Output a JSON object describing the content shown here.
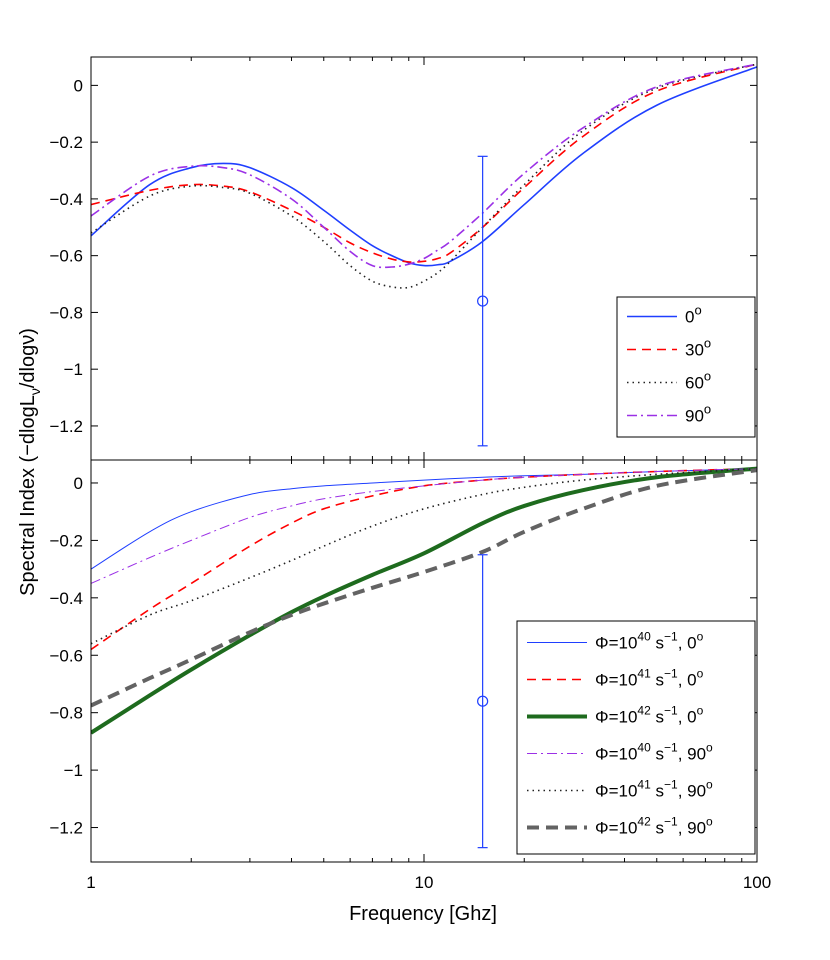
{
  "figure": {
    "xlabel": "Frequency [Ghz]",
    "ylabel": "Spectral Index (−dlogLν/dlogν)",
    "ylabel_parts": {
      "pre": "Spectral Index (−dlogL",
      "sub": "ν",
      "post": "/dlogν)"
    },
    "x_ticks": [
      1,
      10,
      100
    ],
    "x_tick_labels": [
      "1",
      "10",
      "100"
    ],
    "xscale": "log",
    "xlim": [
      1,
      100
    ]
  },
  "chart_data": [
    {
      "type": "line",
      "panel": "top",
      "xlabel": "Frequency [Ghz]",
      "ylabel": "Spectral Index (−dlogLν/dlogν)",
      "xscale": "log",
      "xlim": [
        1,
        100
      ],
      "ylim": [
        -1.32,
        0.1
      ],
      "y_ticks": [
        0,
        -0.2,
        -0.4,
        -0.6,
        -0.8,
        -1,
        -1.2
      ],
      "y_tick_labels": [
        "0",
        "−0.2",
        "−0.4",
        "−0.6",
        "−0.8",
        "−1",
        "−1.2"
      ],
      "legend_position": "bottom-right",
      "x": [
        1,
        1.5,
        2,
        2.5,
        3,
        4,
        5,
        6,
        7,
        8,
        9,
        10,
        11,
        12,
        15,
        20,
        30,
        50,
        100
      ],
      "series": [
        {
          "name": "0",
          "label_sup": "o",
          "legend_text": "0",
          "color": "#1f3fff",
          "dash": "",
          "width": 1.6,
          "values": [
            -0.53,
            -0.35,
            -0.29,
            -0.275,
            -0.29,
            -0.36,
            -0.44,
            -0.51,
            -0.565,
            -0.6,
            -0.625,
            -0.635,
            -0.632,
            -0.62,
            -0.55,
            -0.42,
            -0.24,
            -0.07,
            0.065
          ]
        },
        {
          "name": "30",
          "label_sup": "o",
          "legend_text": "30",
          "color": "#ff0000",
          "dash": "9,6",
          "width": 1.6,
          "values": [
            -0.42,
            -0.37,
            -0.35,
            -0.355,
            -0.375,
            -0.44,
            -0.5,
            -0.555,
            -0.59,
            -0.612,
            -0.622,
            -0.62,
            -0.61,
            -0.59,
            -0.5,
            -0.36,
            -0.18,
            -0.02,
            0.075
          ]
        },
        {
          "name": "60",
          "label_sup": "o",
          "legend_text": "60",
          "color": "#222222",
          "dash": "1.5,4",
          "width": 1.6,
          "values": [
            -0.52,
            -0.39,
            -0.355,
            -0.36,
            -0.38,
            -0.46,
            -0.55,
            -0.635,
            -0.69,
            -0.71,
            -0.712,
            -0.69,
            -0.66,
            -0.62,
            -0.5,
            -0.35,
            -0.16,
            -0.01,
            0.075
          ]
        },
        {
          "name": "90",
          "label_sup": "o",
          "legend_text": "90",
          "color": "#9b30e6",
          "dash": "10,4,2,4",
          "width": 1.6,
          "values": [
            -0.46,
            -0.32,
            -0.285,
            -0.29,
            -0.315,
            -0.4,
            -0.5,
            -0.585,
            -0.635,
            -0.64,
            -0.63,
            -0.61,
            -0.58,
            -0.55,
            -0.45,
            -0.31,
            -0.15,
            -0.005,
            0.075
          ]
        }
      ],
      "errorbar": {
        "x": 15,
        "y": -0.76,
        "low": -1.27,
        "high": -0.25,
        "color": "#1f3fff"
      }
    },
    {
      "type": "line",
      "panel": "bottom",
      "xlabel": "Frequency [Ghz]",
      "ylabel": "Spectral Index (−dlogLν/dlogν)",
      "xscale": "log",
      "xlim": [
        1,
        100
      ],
      "ylim": [
        -1.32,
        0.08
      ],
      "y_ticks": [
        0,
        -0.2,
        -0.4,
        -0.6,
        -0.8,
        -1,
        -1.2
      ],
      "y_tick_labels": [
        "0",
        "−0.2",
        "−0.4",
        "−0.6",
        "−0.8",
        "−1",
        "−1.2"
      ],
      "legend_position": "bottom-right",
      "x": [
        1,
        1.5,
        2,
        3,
        4,
        5,
        7,
        10,
        15,
        20,
        30,
        50,
        100
      ],
      "series": [
        {
          "name": "Φ=10^40 s^-1, 0",
          "legend_pre": "Φ=10",
          "legend_exp": "40",
          "legend_mid": " s",
          "legend_exp2": "−1",
          "legend_post": ", 0",
          "legend_deg": "o",
          "color": "#1f3fff",
          "dash": "",
          "width": 1.0,
          "values": [
            -0.3,
            -0.17,
            -0.1,
            -0.04,
            -0.02,
            -0.01,
            0.0,
            0.01,
            0.02,
            0.025,
            0.03,
            0.04,
            0.05
          ]
        },
        {
          "name": "Φ=10^41 s^-1, 0",
          "legend_pre": "Φ=10",
          "legend_exp": "41",
          "legend_mid": " s",
          "legend_exp2": "−1",
          "legend_post": ", 0",
          "legend_deg": "o",
          "color": "#ff0000",
          "dash": "9,6",
          "width": 1.6,
          "values": [
            -0.58,
            -0.44,
            -0.35,
            -0.22,
            -0.14,
            -0.09,
            -0.045,
            -0.01,
            0.01,
            0.02,
            0.03,
            0.04,
            0.05
          ]
        },
        {
          "name": "Φ=10^42 s^-1, 0",
          "legend_pre": "Φ=10",
          "legend_exp": "42",
          "legend_mid": " s",
          "legend_exp2": "−1",
          "legend_post": ", 0",
          "legend_deg": "o",
          "color": "#1e6b1e",
          "dash": "",
          "width": 4,
          "values": [
            -0.87,
            -0.74,
            -0.65,
            -0.53,
            -0.45,
            -0.395,
            -0.32,
            -0.245,
            -0.14,
            -0.08,
            -0.025,
            0.02,
            0.05
          ]
        },
        {
          "name": "Φ=10^40 s^-1, 90",
          "legend_pre": "Φ=10",
          "legend_exp": "40",
          "legend_mid": " s",
          "legend_exp2": "−1",
          "legend_post": ", 90",
          "legend_deg": "o",
          "color": "#9b30e6",
          "dash": "10,4,2,4",
          "width": 1.0,
          "values": [
            -0.35,
            -0.26,
            -0.2,
            -0.12,
            -0.08,
            -0.055,
            -0.03,
            -0.01,
            0.01,
            0.02,
            0.03,
            0.04,
            0.05
          ]
        },
        {
          "name": "Φ=10^41 s^-1, 90",
          "legend_pre": "Φ=10",
          "legend_exp": "41",
          "legend_mid": " s",
          "legend_exp2": "−1",
          "legend_post": ", 90",
          "legend_deg": "o",
          "color": "#222222",
          "dash": "1.5,4",
          "width": 1.6,
          "values": [
            -0.56,
            -0.46,
            -0.41,
            -0.33,
            -0.27,
            -0.22,
            -0.15,
            -0.09,
            -0.04,
            -0.015,
            0.01,
            0.03,
            0.05
          ]
        },
        {
          "name": "Φ=10^42 s^-1, 90",
          "legend_pre": "Φ=10",
          "legend_exp": "42",
          "legend_mid": " s",
          "legend_exp2": "−1",
          "legend_post": ", 90",
          "legend_deg": "o",
          "color": "#636363",
          "dash": "12,7",
          "width": 4,
          "values": [
            -0.775,
            -0.68,
            -0.615,
            -0.52,
            -0.46,
            -0.42,
            -0.365,
            -0.31,
            -0.24,
            -0.17,
            -0.09,
            -0.01,
            0.045
          ]
        }
      ],
      "errorbar": {
        "x": 15,
        "y": -0.76,
        "low": -1.27,
        "high": -0.25,
        "color": "#1f3fff"
      }
    }
  ]
}
